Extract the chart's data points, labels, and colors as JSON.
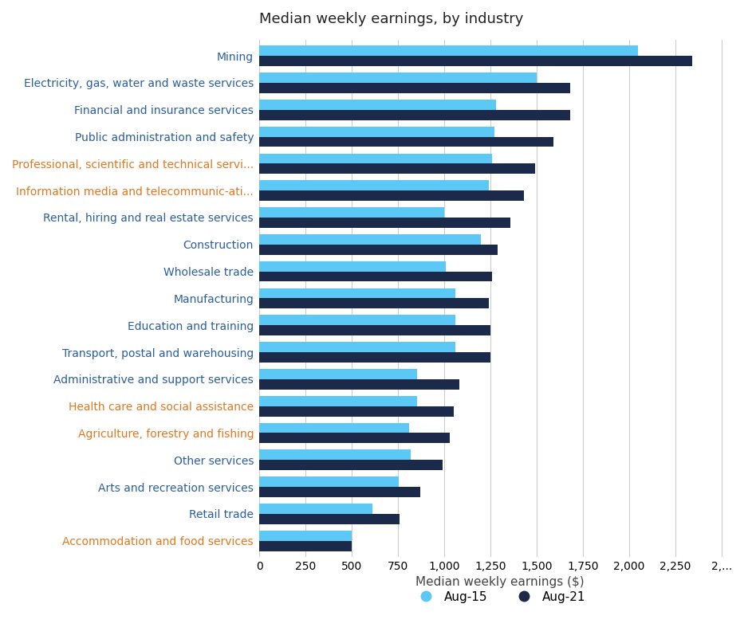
{
  "title": "Median weekly earnings, by industry",
  "xlabel": "Median weekly earnings ($)",
  "categories": [
    "Accommodation and food services",
    "Retail trade",
    "Arts and recreation services",
    "Other services",
    "Agriculture, forestry and fishing",
    "Health care and social assistance",
    "Administrative and support services",
    "Transport, postal and warehousing",
    "Education and training",
    "Manufacturing",
    "Wholesale trade",
    "Construction",
    "Rental, hiring and real estate services",
    "Information media and telecommunic-ati...",
    "Professional, scientific and technical servi...",
    "Public administration and safety",
    "Financial and insurance services",
    "Electricity, gas, water and waste services",
    "Mining"
  ],
  "aug15_values": [
    500,
    610,
    755,
    820,
    810,
    855,
    855,
    1060,
    1060,
    1060,
    1010,
    1200,
    1000,
    1240,
    1260,
    1270,
    1280,
    1500,
    2050
  ],
  "aug21_values": [
    500,
    760,
    870,
    990,
    1030,
    1050,
    1080,
    1250,
    1250,
    1240,
    1260,
    1290,
    1360,
    1430,
    1490,
    1590,
    1680,
    1680,
    2340
  ],
  "color_aug15": "#5BC8F5",
  "color_aug21": "#1B2A4A",
  "label_aug15": "Aug-15",
  "label_aug21": "Aug-21",
  "xlim": [
    0,
    2600
  ],
  "xticks": [
    0,
    250,
    500,
    750,
    1000,
    1250,
    1500,
    1750,
    2000,
    2250,
    2500
  ],
  "xtick_labels": [
    "0",
    "250",
    "500",
    "750",
    "1,000",
    "1,250",
    "1,500",
    "1,750",
    "2,000",
    "2,250",
    "2,..."
  ],
  "title_fontsize": 13,
  "label_fontsize": 11,
  "tick_fontsize": 10,
  "legend_fontsize": 11,
  "label_color_orange": "#E07820",
  "label_color_blue": "#2B5E9B",
  "background_color": "#FFFFFF",
  "bar_height": 0.38,
  "gridcolor": "#CCCCCC",
  "orange_indices": [
    0,
    4,
    5,
    13,
    14
  ]
}
